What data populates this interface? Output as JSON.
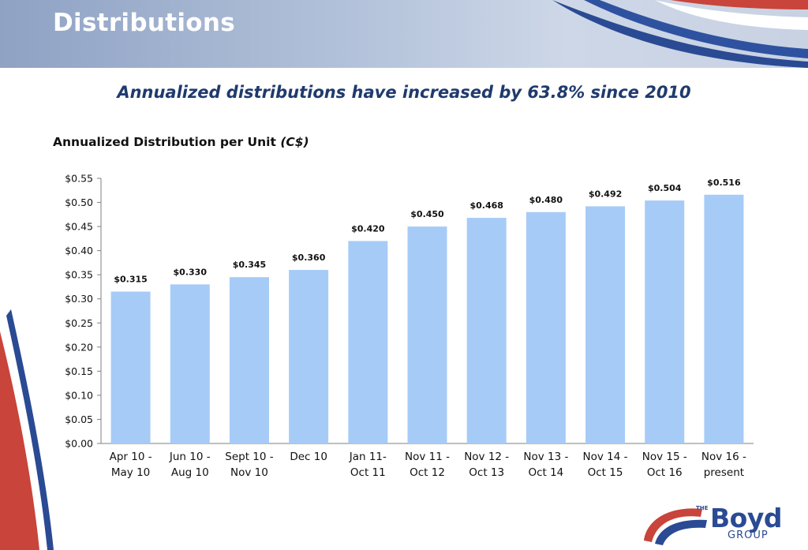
{
  "page": {
    "title": "Distributions",
    "headline": "Annualized distributions have increased by 63.8% since 2010"
  },
  "logo": {
    "the": "THE",
    "name": "Boyd",
    "group": "GROUP"
  },
  "colors": {
    "bar": "#a7cbf7",
    "headline": "#1f3a6e",
    "brand_blue": "#2a4a93",
    "brand_red": "#c9443a"
  },
  "chart_data": {
    "type": "bar",
    "title": "Annualized Distribution per Unit",
    "title_unit": "(C$)",
    "categories": [
      [
        "Apr 10 -",
        "May 10"
      ],
      [
        "Jun 10 -",
        "Aug 10"
      ],
      [
        "Sept 10 -",
        "Nov 10"
      ],
      [
        "Dec 10"
      ],
      [
        "Jan 11-",
        "Oct 11"
      ],
      [
        "Nov 11 -",
        "Oct 12"
      ],
      [
        "Nov 12 -",
        "Oct 13"
      ],
      [
        "Nov 13 -",
        "Oct 14"
      ],
      [
        "Nov 14 -",
        "Oct 15"
      ],
      [
        "Nov 15 -",
        "Oct 16"
      ],
      [
        "Nov 16 -",
        "present"
      ]
    ],
    "values": [
      0.315,
      0.33,
      0.345,
      0.36,
      0.42,
      0.45,
      0.468,
      0.48,
      0.492,
      0.504,
      0.516
    ],
    "data_labels": [
      "$0.315",
      "$0.330",
      "$0.345",
      "$0.360",
      "$0.420",
      "$0.450",
      "$0.468",
      "$0.480",
      "$0.492",
      "$0.504",
      "$0.516"
    ],
    "y_ticks": [
      0.0,
      0.05,
      0.1,
      0.15,
      0.2,
      0.25,
      0.3,
      0.35,
      0.4,
      0.45,
      0.5,
      0.55
    ],
    "y_tick_labels": [
      "$0.00",
      "$0.05",
      "$0.10",
      "$0.15",
      "$0.20",
      "$0.25",
      "$0.30",
      "$0.35",
      "$0.40",
      "$0.45",
      "$0.50",
      "$0.55"
    ],
    "ylim": [
      0,
      0.55
    ],
    "grid": false,
    "legend": "none"
  }
}
